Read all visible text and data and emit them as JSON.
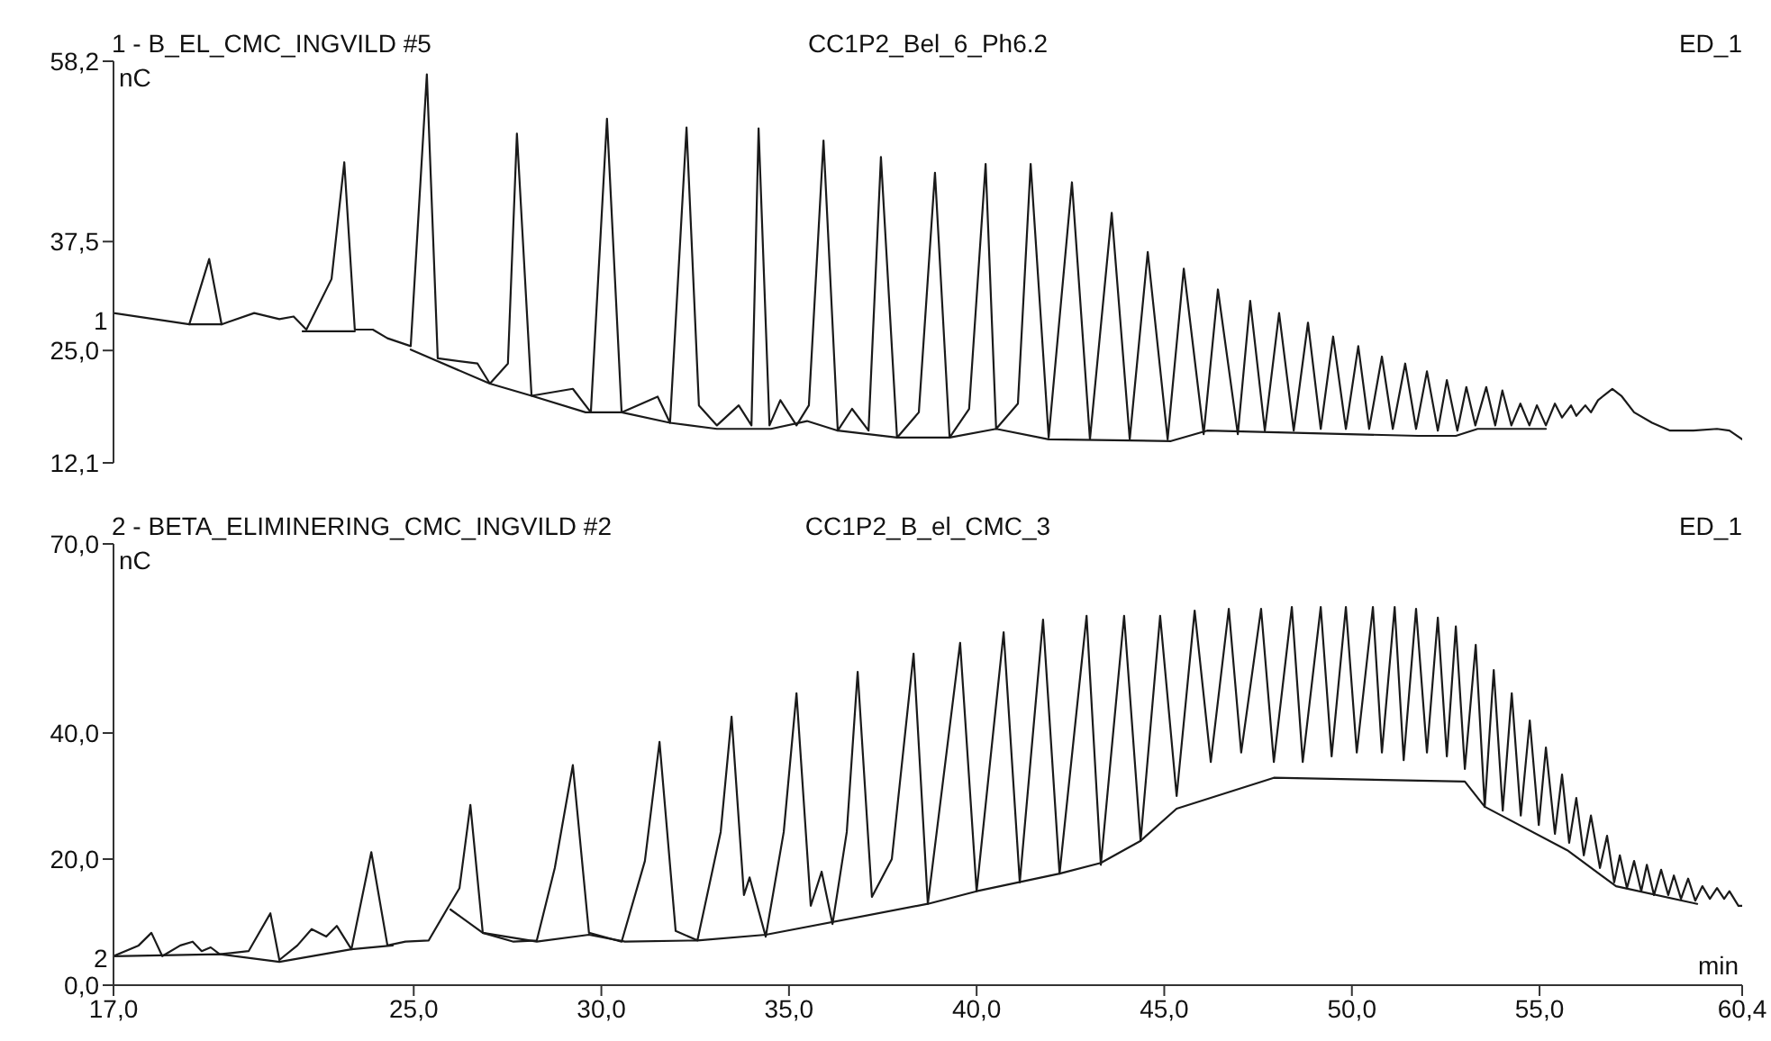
{
  "chart_data": [
    {
      "type": "line",
      "title": "1 - B_EL_CMC_INGVILD #5",
      "subtitle": "CC1P2_Bel_6_Ph6.2",
      "ylabel": "nC",
      "annotations": [
        "ED_1",
        "1"
      ],
      "xlim": [
        17.0,
        60.4
      ],
      "ylim": [
        12.1,
        58.2
      ],
      "yticks": [
        {
          "value": 12.1,
          "label": "12,1"
        },
        {
          "value": 25,
          "label": "25,0"
        },
        {
          "value": 37.5,
          "label": "37,5"
        },
        {
          "value": 58.2,
          "label": "58,2"
        }
      ],
      "tick_labels": "y",
      "marker": "none",
      "line_style": "solid",
      "series": [
        {
          "color": "#1a1a1a",
          "x": [
            17.0,
            19.02,
            19.55,
            19.88,
            20.75,
            21.42,
            21.8,
            22.14,
            22.81,
            23.15,
            23.43,
            23.91,
            24.3,
            24.92,
            25.35,
            25.64,
            26.7,
            27.03,
            27.51,
            27.75,
            28.14,
            29.24,
            29.72,
            30.15,
            30.54,
            31.5,
            31.83,
            32.27,
            32.6,
            33.08,
            33.66,
            34.0,
            34.19,
            34.48,
            34.77,
            35.2,
            35.53,
            35.92,
            36.3,
            36.68,
            37.12,
            37.45,
            37.88,
            38.46,
            38.89,
            39.28,
            39.8,
            40.24,
            40.52,
            41.1,
            41.44,
            41.92,
            42.54,
            43.02,
            43.6,
            44.08,
            44.56,
            45.09,
            45.52,
            46.05,
            46.43,
            46.96,
            47.29,
            47.68,
            48.06,
            48.45,
            48.83,
            49.17,
            49.5,
            49.84,
            50.17,
            50.46,
            50.8,
            51.09,
            51.42,
            51.71,
            52.0,
            52.29,
            52.53,
            52.81,
            53.05,
            53.29,
            53.58,
            53.82,
            54.01,
            54.25,
            54.49,
            54.73,
            54.93,
            55.17,
            55.41,
            55.6,
            55.84,
            55.98,
            56.22,
            56.37,
            56.56,
            56.94,
            57.18,
            57.52,
            58.0,
            58.48,
            59.1,
            59.73,
            60.06,
            60.4
          ],
          "values": [
            29.3,
            28.0,
            35.5,
            28.0,
            29.3,
            28.6,
            28.9,
            27.4,
            33.2,
            46.6,
            27.4,
            27.4,
            26.4,
            25.5,
            56.7,
            24.1,
            23.5,
            21.2,
            23.5,
            49.9,
            19.8,
            20.6,
            17.9,
            51.6,
            17.9,
            19.7,
            16.7,
            50.6,
            18.7,
            16.4,
            18.7,
            16.4,
            50.5,
            16.4,
            19.3,
            16.4,
            18.7,
            49.1,
            15.8,
            18.3,
            15.8,
            47.2,
            15.0,
            17.9,
            45.4,
            15.0,
            18.3,
            46.4,
            16.0,
            18.9,
            46.4,
            15.0,
            44.3,
            14.8,
            40.8,
            14.8,
            36.3,
            14.8,
            34.4,
            15.4,
            32.0,
            15.4,
            30.7,
            15.8,
            29.3,
            15.8,
            28.2,
            16.0,
            26.6,
            16.0,
            25.5,
            16.0,
            24.3,
            16.0,
            23.5,
            16.0,
            22.6,
            15.8,
            21.6,
            15.8,
            20.8,
            16.4,
            20.8,
            16.4,
            20.4,
            16.4,
            18.9,
            16.4,
            18.7,
            16.4,
            18.9,
            17.3,
            18.7,
            17.5,
            18.7,
            17.9,
            19.3,
            20.6,
            19.8,
            17.9,
            16.7,
            15.8,
            15.8,
            16.0,
            15.8,
            14.8
          ]
        },
        {
          "color": "#1a1a1a",
          "x": [
            19.02,
            19.88,
            21.0,
            22.04,
            23.43,
            24.2,
            24.92,
            27.03,
            28.14,
            29.58,
            30.54,
            31.83,
            33.08,
            34.52,
            35.48,
            36.3,
            37.88,
            39.28,
            40.52,
            41.92,
            45.18,
            46.14,
            51.76,
            52.77,
            53.35,
            55.17
          ],
          "values": [
            28.0,
            28.0,
            null,
            27.2,
            27.2,
            null,
            25.1,
            21.2,
            19.8,
            17.9,
            17.9,
            16.7,
            16.0,
            16.0,
            16.9,
            15.8,
            15.0,
            15.0,
            16.0,
            14.8,
            14.6,
            15.8,
            15.2,
            15.2,
            16.0,
            16.0
          ]
        }
      ]
    },
    {
      "type": "line",
      "title": "2 - BETA_ELIMINERING_CMC_INGVILD #2",
      "subtitle": "CC1P2_B_el_CMC_3",
      "xlabel": "min",
      "ylabel": "nC",
      "annotations": [
        "ED_1",
        "2"
      ],
      "xlim": [
        17.0,
        60.4
      ],
      "xticks": [
        {
          "value": 17,
          "label": "17,0"
        },
        {
          "value": 25,
          "label": "25,0"
        },
        {
          "value": 30,
          "label": "30,0"
        },
        {
          "value": 35,
          "label": "35,0"
        },
        {
          "value": 40,
          "label": "40,0"
        },
        {
          "value": 45,
          "label": "45,0"
        },
        {
          "value": 50,
          "label": "50,0"
        },
        {
          "value": 55,
          "label": "55,0"
        },
        {
          "value": 60.4,
          "label": "60,4"
        }
      ],
      "ylim": [
        0,
        70
      ],
      "yticks": [
        {
          "value": 0,
          "label": "0,0"
        },
        {
          "value": 20,
          "label": "20,0"
        },
        {
          "value": 40,
          "label": "40,0"
        },
        {
          "value": 70,
          "label": "70,0"
        }
      ],
      "marker": "none",
      "line_style": "solid",
      "series": [
        {
          "color": "#1a1a1a",
          "x": [
            17.0,
            17.67,
            18.01,
            18.3,
            18.78,
            19.11,
            19.35,
            19.59,
            19.83,
            20.6,
            21.18,
            21.42,
            21.9,
            22.28,
            22.67,
            22.95,
            23.34,
            23.87,
            24.3,
            24.78,
            25.4,
            25.88,
            26.22,
            26.51,
            26.84,
            27.66,
            28.28,
            28.76,
            29.24,
            29.67,
            30.54,
            31.16,
            31.55,
            31.98,
            32.56,
            33.18,
            33.47,
            33.8,
            33.95,
            34.38,
            34.86,
            35.2,
            35.58,
            35.87,
            36.16,
            36.54,
            36.83,
            37.21,
            37.74,
            38.32,
            38.7,
            39.56,
            40.0,
            40.72,
            41.15,
            41.77,
            42.21,
            42.93,
            43.31,
            43.93,
            44.37,
            44.89,
            45.33,
            45.81,
            46.24,
            46.72,
            47.05,
            47.58,
            47.92,
            48.4,
            48.69,
            49.17,
            49.46,
            49.84,
            50.13,
            50.56,
            50.8,
            51.14,
            51.38,
            51.71,
            52.0,
            52.29,
            52.53,
            52.77,
            53.01,
            53.3,
            53.54,
            53.78,
            54.02,
            54.26,
            54.5,
            54.74,
            54.98,
            55.17,
            55.41,
            55.6,
            55.79,
            55.98,
            56.18,
            56.37,
            56.61,
            56.8,
            56.99,
            57.14,
            57.33,
            57.52,
            57.71,
            57.86,
            58.05,
            58.24,
            58.43,
            58.58,
            58.77,
            58.96,
            59.15,
            59.34,
            59.54,
            59.73,
            59.92,
            60.06,
            60.3,
            60.4
          ],
          "values": [
            4.6,
            6.3,
            8.3,
            4.6,
            6.3,
            6.9,
            5.4,
            6.0,
            4.9,
            5.4,
            11.4,
            4.0,
            6.3,
            8.9,
            7.7,
            9.4,
            5.7,
            21.1,
            6.3,
            6.9,
            7.1,
            12.0,
            15.4,
            28.6,
            8.3,
            6.9,
            7.1,
            18.6,
            34.9,
            8.3,
            6.9,
            19.7,
            38.6,
            8.6,
            7.1,
            24.3,
            42.6,
            14.3,
            17.1,
            7.7,
            24.3,
            46.3,
            12.6,
            18.0,
            9.7,
            24.3,
            49.7,
            14.0,
            20.0,
            52.6,
            12.9,
            54.3,
            14.9,
            56.0,
            16.3,
            58.0,
            17.7,
            58.6,
            19.1,
            58.6,
            22.9,
            58.6,
            30.0,
            59.4,
            35.4,
            59.7,
            36.9,
            59.7,
            35.4,
            60.0,
            35.4,
            60.0,
            36.3,
            60.0,
            36.9,
            60.0,
            36.9,
            60.0,
            35.7,
            59.7,
            36.9,
            58.3,
            36.3,
            56.9,
            34.3,
            54.0,
            28.3,
            50.0,
            27.7,
            46.3,
            26.9,
            42.0,
            25.4,
            37.7,
            24.0,
            33.4,
            22.6,
            29.7,
            20.6,
            26.9,
            18.6,
            23.7,
            16.3,
            20.6,
            15.4,
            19.7,
            14.9,
            19.1,
            14.3,
            18.3,
            14.3,
            17.4,
            13.7,
            16.9,
            13.4,
            15.7,
            13.7,
            15.4,
            13.7,
            14.9,
            12.6,
            12.6
          ]
        },
        {
          "color": "#1a1a1a",
          "x": [
            17.0,
            19.83,
            21.42,
            23.34,
            24.44,
            25.2,
            25.98,
            26.84,
            28.28,
            29.67,
            30.63,
            32.56,
            34.38,
            38.7,
            40.0,
            42.21,
            43.31,
            44.37,
            45.33,
            47.92,
            53.01,
            53.54,
            55.74,
            57.04,
            59.2
          ],
          "values": [
            4.6,
            4.9,
            3.7,
            5.7,
            6.3,
            null,
            12.0,
            8.3,
            6.9,
            8.0,
            6.9,
            7.1,
            8.0,
            12.9,
            14.9,
            17.7,
            19.4,
            22.9,
            28.0,
            32.9,
            32.3,
            28.3,
            21.4,
            15.7,
            12.9
          ]
        }
      ]
    }
  ]
}
